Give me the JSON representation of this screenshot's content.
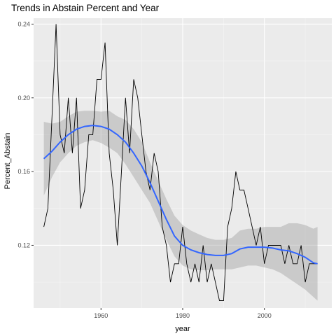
{
  "chart_data": {
    "type": "line",
    "title": "Trends in Abstain Percent and Year",
    "xlabel": "year",
    "ylabel": "Percent_Abstain",
    "xlim": [
      1943.5,
      2016.5
    ],
    "ylim": [
      0.086,
      0.2432
    ],
    "x_ticks": [
      1960,
      1980,
      2000
    ],
    "y_ticks": [
      0.12,
      0.16,
      0.2,
      0.24
    ],
    "x_tick_labels": [
      "1960",
      "1980",
      "2000"
    ],
    "y_tick_labels": [
      "0.12",
      "0.16",
      "0.20",
      "0.24"
    ],
    "grid": true,
    "legend": "none",
    "colors": {
      "panel_background": "#ebebeb",
      "grid_major": "#ffffff",
      "grid_minor": "#f5f5f5",
      "raw_line": "#000000",
      "smooth_line": "#3366ff",
      "ribbon": "#999999"
    },
    "series": [
      {
        "type": "raw",
        "x": [
          1946,
          1947,
          1948,
          1949,
          1950,
          1951,
          1952,
          1953,
          1954,
          1955,
          1956,
          1957,
          1958,
          1959,
          1960,
          1961,
          1962,
          1963,
          1964,
          1965,
          1966,
          1967,
          1968,
          1969,
          1970,
          1971,
          1972,
          1973,
          1974,
          1975,
          1976,
          1977,
          1978,
          1979,
          1980,
          1981,
          1982,
          1983,
          1984,
          1985,
          1986,
          1987,
          1988,
          1989,
          1990,
          1991,
          1992,
          1993,
          1994,
          1995,
          1996,
          1997,
          1998,
          1999,
          2000,
          2001,
          2002,
          2003,
          2004,
          2005,
          2006,
          2007,
          2008,
          2009,
          2010,
          2011,
          2012,
          2013
        ],
        "y": [
          0.13,
          0.14,
          0.19,
          0.24,
          0.18,
          0.17,
          0.2,
          0.17,
          0.2,
          0.14,
          0.15,
          0.18,
          0.18,
          0.21,
          0.21,
          0.23,
          0.17,
          0.15,
          0.12,
          0.16,
          0.2,
          0.17,
          0.21,
          0.2,
          0.18,
          0.16,
          0.15,
          0.17,
          0.16,
          0.13,
          0.12,
          0.1,
          0.11,
          0.11,
          0.13,
          0.11,
          0.1,
          0.11,
          0.1,
          0.12,
          0.1,
          0.11,
          0.1,
          0.09,
          0.09,
          0.13,
          0.14,
          0.16,
          0.15,
          0.15,
          0.14,
          0.13,
          0.12,
          0.13,
          0.11,
          0.12,
          0.12,
          0.12,
          0.12,
          0.11,
          0.12,
          0.11,
          0.11,
          0.12,
          0.1,
          0.11,
          0.11,
          0.11
        ]
      },
      {
        "type": "smooth",
        "x": [
          1946,
          1948,
          1950,
          1952,
          1954,
          1956,
          1958,
          1960,
          1962,
          1964,
          1966,
          1968,
          1970,
          1972,
          1974,
          1976,
          1978,
          1980,
          1982,
          1984,
          1986,
          1988,
          1990,
          1992,
          1994,
          1996,
          1998,
          2000,
          2002,
          2004,
          2006,
          2008,
          2010,
          2012,
          2013
        ],
        "y": [
          0.167,
          0.171,
          0.176,
          0.18,
          0.183,
          0.1845,
          0.185,
          0.1845,
          0.183,
          0.18,
          0.176,
          0.17,
          0.163,
          0.154,
          0.144,
          0.134,
          0.125,
          0.12,
          0.1175,
          0.116,
          0.115,
          0.1145,
          0.1145,
          0.1155,
          0.118,
          0.119,
          0.119,
          0.119,
          0.1185,
          0.1175,
          0.117,
          0.1155,
          0.1135,
          0.1105,
          0.11
        ],
        "ci_lower": [
          0.147,
          0.157,
          0.165,
          0.17,
          0.174,
          0.176,
          0.177,
          0.1755,
          0.173,
          0.17,
          0.164,
          0.157,
          0.15,
          0.143,
          0.133,
          0.123,
          0.114,
          0.109,
          0.107,
          0.1065,
          0.1065,
          0.107,
          0.107,
          0.107,
          0.108,
          0.109,
          0.109,
          0.108,
          0.107,
          0.105,
          0.102,
          0.099,
          0.096,
          0.092,
          0.09
        ],
        "ci_upper": [
          0.187,
          0.186,
          0.187,
          0.19,
          0.1925,
          0.193,
          0.193,
          0.1925,
          0.193,
          0.19,
          0.188,
          0.183,
          0.176,
          0.165,
          0.155,
          0.145,
          0.136,
          0.131,
          0.128,
          0.126,
          0.124,
          0.123,
          0.123,
          0.124,
          0.128,
          0.129,
          0.129,
          0.13,
          0.13,
          0.13,
          0.132,
          0.132,
          0.131,
          0.129,
          0.13
        ]
      }
    ]
  }
}
